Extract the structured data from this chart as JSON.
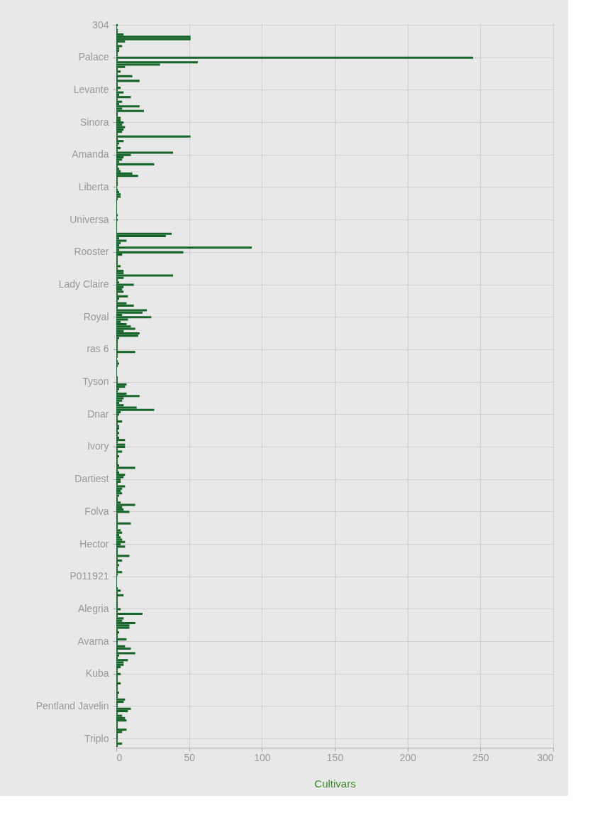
{
  "chart_data": {
    "type": "bar",
    "orientation": "horizontal",
    "xlabel": "Cultivars",
    "categories": [
      "304",
      null,
      null,
      null,
      null,
      null,
      null,
      null,
      null,
      null,
      null,
      null,
      null,
      null,
      "Palace",
      null,
      null,
      null,
      null,
      null,
      null,
      null,
      null,
      null,
      null,
      null,
      null,
      null,
      "Levante",
      null,
      null,
      null,
      null,
      null,
      null,
      null,
      null,
      null,
      null,
      null,
      null,
      null,
      "Sinora",
      null,
      null,
      null,
      null,
      null,
      null,
      null,
      null,
      null,
      null,
      null,
      null,
      null,
      "Amanda",
      null,
      null,
      null,
      null,
      null,
      null,
      null,
      null,
      null,
      null,
      null,
      null,
      null,
      "Liberta",
      null,
      null,
      null,
      null,
      null,
      null,
      null,
      null,
      null,
      null,
      null,
      null,
      null,
      "Universa",
      null,
      null,
      null,
      null,
      null,
      null,
      null,
      null,
      null,
      null,
      null,
      null,
      null,
      "Rooster",
      null,
      null,
      null,
      null,
      null,
      null,
      null,
      null,
      null,
      null,
      null,
      null,
      null,
      "Lady Claire",
      null,
      null,
      null,
      null,
      null,
      null,
      null,
      null,
      null,
      null,
      null,
      null,
      null,
      "Royal",
      null,
      null,
      null,
      null,
      null,
      null,
      null,
      null,
      null,
      null,
      null,
      null,
      null,
      "ras 6",
      null,
      null,
      null,
      null,
      null,
      null,
      null,
      null,
      null,
      null,
      null,
      null,
      null,
      "Tyson",
      null,
      null,
      null,
      null,
      null,
      null,
      null,
      null,
      null,
      null,
      null,
      null,
      null,
      "Dnar",
      null,
      null,
      null,
      null,
      null,
      null,
      null,
      null,
      null,
      null,
      null,
      null,
      null,
      "Ivory",
      null,
      null,
      null,
      null,
      null,
      null,
      null,
      null,
      null,
      null,
      null,
      null,
      null,
      "Dartiest",
      null,
      null,
      null,
      null,
      null,
      null,
      null,
      null,
      null,
      null,
      null,
      null,
      null,
      "Folva",
      null,
      null,
      null,
      null,
      null,
      null,
      null,
      null,
      null,
      null,
      null,
      null,
      null,
      "Hector",
      null,
      null,
      null,
      null,
      null,
      null,
      null,
      null,
      null,
      null,
      null,
      null,
      null,
      "P011921",
      null,
      null,
      null,
      null,
      null,
      null,
      null,
      null,
      null,
      null,
      null,
      null,
      null,
      "Alegria",
      null,
      null,
      null,
      null,
      null,
      null,
      null,
      null,
      null,
      null,
      null,
      null,
      null,
      "Avarna",
      null,
      null,
      null,
      null,
      null,
      null,
      null,
      null,
      null,
      null,
      null,
      null,
      null,
      "Kuba",
      null,
      null,
      null,
      null,
      null,
      null,
      null,
      null,
      null,
      null,
      null,
      null,
      null,
      "Pentland Javelin",
      null,
      null,
      null,
      null,
      null,
      null,
      null,
      null,
      null,
      null,
      null,
      null,
      null,
      "Triplo",
      null,
      null,
      null
    ],
    "values": [
      1,
      0.5,
      1,
      1,
      5,
      51,
      51,
      6,
      1,
      4,
      2,
      2,
      1,
      1,
      245,
      1,
      56,
      30,
      6,
      1,
      3,
      1,
      11,
      1,
      16,
      1,
      1,
      3,
      1,
      5,
      2,
      10,
      1,
      4,
      2,
      16,
      4,
      19,
      1,
      1,
      3,
      3,
      5,
      4,
      6,
      5,
      4,
      1,
      51,
      1,
      5,
      2,
      1,
      3,
      1,
      39,
      10,
      5,
      4,
      2,
      26,
      1,
      2,
      3,
      11,
      15,
      1,
      1,
      1,
      1,
      0.5,
      1,
      2,
      3,
      3,
      1,
      0.5,
      0.5,
      0.5,
      0.5,
      0.5,
      0.5,
      1,
      0.5,
      1,
      0.5,
      0.5,
      0.5,
      0.5,
      0.5,
      38,
      34,
      2,
      7,
      3,
      2,
      93,
      2,
      46,
      4,
      1,
      1,
      1,
      1,
      3,
      1,
      5,
      5,
      39,
      5,
      1,
      2,
      12,
      5,
      4,
      5,
      1,
      8,
      2,
      1,
      7,
      12,
      1,
      21,
      18,
      4,
      24,
      8,
      3,
      7,
      10,
      13,
      5,
      16,
      15,
      2,
      1,
      1,
      1,
      1,
      1,
      13,
      1,
      1,
      0.5,
      1,
      2,
      1,
      0.5,
      0.5,
      0.5,
      0.5,
      1,
      1,
      1,
      7,
      6,
      2,
      1,
      7,
      16,
      5,
      4,
      2,
      5,
      14,
      26,
      3,
      2,
      1,
      1,
      4,
      1,
      2,
      2,
      1,
      2,
      1,
      2,
      6,
      1,
      6,
      6,
      1,
      4,
      1,
      2,
      1,
      1,
      1,
      2,
      13,
      1,
      2,
      6,
      5,
      3,
      3,
      1,
      6,
      4,
      3,
      4,
      2,
      1,
      1,
      3,
      13,
      4,
      5,
      9,
      1,
      1,
      1,
      1,
      10,
      1,
      1,
      3,
      4,
      2,
      3,
      4,
      6,
      3,
      6,
      1,
      1,
      1,
      9,
      1,
      4,
      1,
      2,
      1,
      1,
      4,
      1,
      0.5,
      0.5,
      0.5,
      0.5,
      0.5,
      1,
      3,
      1,
      5,
      1,
      1,
      1,
      1,
      1,
      3,
      1,
      18,
      1,
      5,
      4,
      13,
      9,
      9,
      1,
      2,
      1,
      1,
      7,
      1,
      1,
      6,
      10,
      1,
      13,
      2,
      1,
      8,
      5,
      5,
      3,
      1,
      1,
      3,
      1,
      1,
      1,
      3,
      1,
      1,
      1,
      2,
      1,
      1,
      6,
      5,
      1,
      1,
      10,
      8,
      1,
      4,
      6,
      7,
      1,
      1,
      1,
      7,
      4,
      1,
      1,
      1,
      1,
      4,
      1
    ],
    "color": "#17652b",
    "xlim": [
      0,
      300
    ],
    "xticks": [
      0,
      50,
      100,
      150,
      200,
      250,
      300
    ],
    "grid": true
  }
}
